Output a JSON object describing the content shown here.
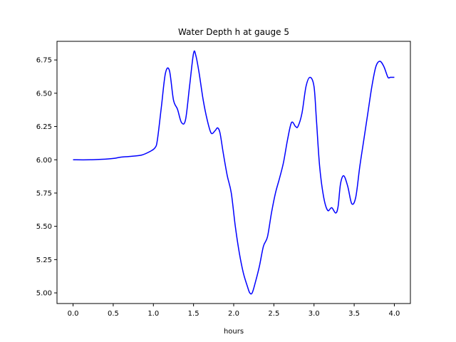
{
  "chart_data": {
    "type": "line",
    "title": "Water Depth h at gauge 5",
    "xlabel": "hours",
    "ylabel": "",
    "xlim": [
      -0.2,
      4.2
    ],
    "ylim": [
      4.92,
      6.89
    ],
    "xticks": [
      0.0,
      0.5,
      1.0,
      1.5,
      2.0,
      2.5,
      3.0,
      3.5,
      4.0
    ],
    "xtick_labels": [
      "0.0",
      "0.5",
      "1.0",
      "1.5",
      "2.0",
      "2.5",
      "3.0",
      "3.5",
      "4.0"
    ],
    "yticks": [
      5.0,
      5.25,
      5.5,
      5.75,
      6.0,
      6.25,
      6.5,
      6.75
    ],
    "ytick_labels": [
      "5.00",
      "5.25",
      "5.50",
      "5.75",
      "6.00",
      "6.25",
      "6.50",
      "6.75"
    ],
    "grid": false,
    "series": [
      {
        "color": "#0000ff",
        "x": [
          0.0,
          0.2,
          0.4,
          0.5,
          0.6,
          0.7,
          0.85,
          0.95,
          1.02,
          1.05,
          1.1,
          1.15,
          1.2,
          1.25,
          1.3,
          1.35,
          1.4,
          1.45,
          1.5,
          1.53,
          1.57,
          1.62,
          1.67,
          1.72,
          1.77,
          1.8,
          1.83,
          1.87,
          1.92,
          1.97,
          2.02,
          2.07,
          2.12,
          2.17,
          2.2,
          2.23,
          2.27,
          2.32,
          2.37,
          2.42,
          2.47,
          2.52,
          2.57,
          2.62,
          2.67,
          2.72,
          2.77,
          2.8,
          2.85,
          2.9,
          2.95,
          3.0,
          3.03,
          3.07,
          3.12,
          3.17,
          3.22,
          3.27,
          3.3,
          3.33,
          3.37,
          3.42,
          3.47,
          3.52,
          3.57,
          3.62,
          3.67,
          3.72,
          3.77,
          3.82,
          3.87,
          3.92,
          3.95,
          3.98,
          4.0
        ],
        "y": [
          6.0,
          6.0,
          6.005,
          6.01,
          6.02,
          6.025,
          6.035,
          6.06,
          6.09,
          6.15,
          6.4,
          6.65,
          6.67,
          6.45,
          6.38,
          6.28,
          6.3,
          6.55,
          6.8,
          6.78,
          6.65,
          6.45,
          6.3,
          6.2,
          6.22,
          6.24,
          6.2,
          6.05,
          5.88,
          5.75,
          5.5,
          5.3,
          5.15,
          5.05,
          5.0,
          5.0,
          5.08,
          5.2,
          5.35,
          5.42,
          5.6,
          5.75,
          5.86,
          5.98,
          6.15,
          6.28,
          6.25,
          6.25,
          6.35,
          6.55,
          6.62,
          6.55,
          6.3,
          5.95,
          5.72,
          5.62,
          5.64,
          5.6,
          5.65,
          5.82,
          5.88,
          5.8,
          5.67,
          5.72,
          5.95,
          6.15,
          6.35,
          6.55,
          6.7,
          6.74,
          6.7,
          6.62,
          6.62,
          6.62,
          6.62
        ]
      }
    ]
  }
}
